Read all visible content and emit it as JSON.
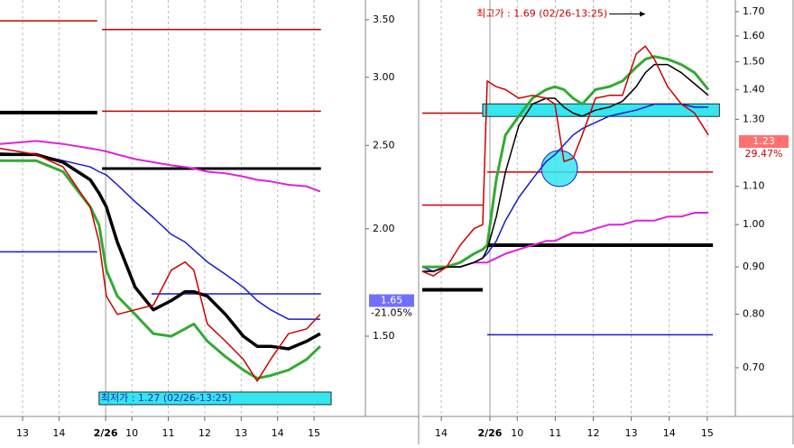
{
  "chart_data": [
    {
      "type": "line",
      "log_y": true,
      "xlim": [
        -0.62,
        9.41
      ],
      "ylim": [
        1.21,
        3.69
      ],
      "xticks": [
        {
          "value": 0,
          "label": "13"
        },
        {
          "value": 1,
          "label": "14"
        },
        {
          "value": 2.28,
          "label": "2/26"
        },
        {
          "value": 3,
          "label": "10"
        },
        {
          "value": 4,
          "label": "11"
        },
        {
          "value": 5,
          "label": "12"
        },
        {
          "value": 6,
          "label": "13"
        },
        {
          "value": 7,
          "label": "14"
        },
        {
          "value": 8,
          "label": "15"
        }
      ],
      "yticks": [
        {
          "value": 3.5,
          "label": "3.50"
        },
        {
          "value": 3,
          "label": "3.00"
        },
        {
          "value": 2.5,
          "label": "2.50"
        },
        {
          "value": 2,
          "label": "2.00"
        },
        {
          "value": 1.5,
          "label": "1.50"
        }
      ],
      "x": [
        -0.62,
        0.37,
        1.11,
        1.86,
        2.1,
        2.3,
        2.6,
        3.09,
        3.59,
        4.08,
        4.46,
        4.7,
        5.07,
        5.57,
        6.06,
        6.44,
        6.81,
        7.3,
        7.8,
        8.17
      ],
      "series": [
        {
          "color": "#dd22dd",
          "width": 2,
          "values": [
            2.51,
            2.53,
            2.51,
            2.48,
            2.47,
            2.46,
            2.44,
            2.41,
            2.39,
            2.37,
            2.36,
            2.35,
            2.33,
            2.32,
            2.3,
            2.28,
            2.27,
            2.25,
            2.24,
            2.21
          ]
        },
        {
          "color": "#1a1acc",
          "width": 1.5,
          "values": [
            2.45,
            2.44,
            2.4,
            2.36,
            2.33,
            2.31,
            2.25,
            2.15,
            2.06,
            1.97,
            1.93,
            1.89,
            1.83,
            1.77,
            1.71,
            1.65,
            1.61,
            1.57,
            1.57,
            1.57
          ]
        },
        {
          "color": "#33aa33",
          "width": 3,
          "values": [
            2.4,
            2.4,
            2.33,
            2.12,
            2.02,
            1.79,
            1.67,
            1.59,
            1.51,
            1.5,
            1.53,
            1.55,
            1.48,
            1.42,
            1.37,
            1.34,
            1.35,
            1.37,
            1.41,
            1.46
          ]
        },
        {
          "color": "#000000",
          "width": 3.5,
          "values": [
            2.44,
            2.44,
            2.39,
            2.28,
            2.2,
            2.12,
            1.93,
            1.71,
            1.61,
            1.65,
            1.69,
            1.69,
            1.67,
            1.59,
            1.5,
            1.46,
            1.46,
            1.45,
            1.48,
            1.51
          ]
        },
        {
          "color": "#cc0000",
          "width": 1.5,
          "values": [
            2.48,
            2.44,
            2.36,
            2.12,
            1.93,
            1.67,
            1.59,
            1.61,
            1.63,
            1.79,
            1.83,
            1.79,
            1.55,
            1.48,
            1.41,
            1.33,
            1.41,
            1.51,
            1.53,
            1.59
          ]
        }
      ],
      "hlines": [
        {
          "value": 3.49,
          "x": [
            -0.62,
            2.05
          ],
          "color": "#cc0000",
          "width": 1.5
        },
        {
          "value": 3.41,
          "x": [
            2.18,
            8.19
          ],
          "color": "#cc0000",
          "width": 1.5
        },
        {
          "value": 2.73,
          "x": [
            -0.62,
            2.05
          ],
          "color": "#000000",
          "width": 4
        },
        {
          "value": 2.74,
          "x": [
            2.18,
            8.19
          ],
          "color": "#cc0000",
          "width": 1.5
        },
        {
          "value": 2.35,
          "x": [
            2.18,
            8.19
          ],
          "color": "#000000",
          "width": 3
        },
        {
          "value": 1.88,
          "x": [
            -0.62,
            2.05
          ],
          "color": "#1a1acc",
          "width": 1.5
        },
        {
          "value": 1.68,
          "x": [
            3.54,
            8.19
          ],
          "color": "#1a1acc",
          "width": 1.5
        }
      ],
      "band": {
        "value": 1.27,
        "x": [
          2.1,
          8.47
        ],
        "label": "최저가 : 1.27 (02/26-13:25)"
      },
      "last": {
        "value": 1.65,
        "change": "-21.05%",
        "color": "#7070ff",
        "change_color": "#000000"
      }
    },
    {
      "type": "line",
      "log_y": true,
      "xlim": [
        0.5,
        8.74
      ],
      "ylim": [
        0.62,
        1.75
      ],
      "xticks": [
        {
          "value": 1,
          "label": "14"
        },
        {
          "value": 2.28,
          "label": "2/26"
        },
        {
          "value": 3,
          "label": "10"
        },
        {
          "value": 4,
          "label": "11"
        },
        {
          "value": 5,
          "label": "12"
        },
        {
          "value": 6,
          "label": "13"
        },
        {
          "value": 7,
          "label": "14"
        },
        {
          "value": 8,
          "label": "15"
        }
      ],
      "yticks": [
        {
          "value": 1.7,
          "label": "1.70"
        },
        {
          "value": 1.6,
          "label": "1.60"
        },
        {
          "value": 1.5,
          "label": "1.50"
        },
        {
          "value": 1.4,
          "label": "1.40"
        },
        {
          "value": 1.3,
          "label": "1.30"
        },
        {
          "value": 1.1,
          "label": "1.10"
        },
        {
          "value": 1,
          "label": "1.00"
        },
        {
          "value": 0.9,
          "label": "0.90"
        },
        {
          "value": 0.8,
          "label": "0.80"
        },
        {
          "value": 0.7,
          "label": "0.70"
        }
      ],
      "x": [
        0.5,
        0.79,
        1.14,
        1.5,
        1.86,
        2.09,
        2.21,
        2.45,
        2.69,
        3.04,
        3.4,
        3.76,
        3.99,
        4.23,
        4.47,
        4.71,
        5.06,
        5.42,
        5.77,
        6.13,
        6.37,
        6.61,
        6.96,
        7.32,
        7.67,
        8.03
      ],
      "series": [
        {
          "color": "#dd22dd",
          "width": 2,
          "values": [
            0.89,
            0.89,
            0.9,
            0.9,
            0.91,
            0.91,
            0.91,
            0.92,
            0.93,
            0.94,
            0.95,
            0.96,
            0.96,
            0.97,
            0.98,
            0.98,
            0.99,
            1,
            1,
            1.01,
            1.01,
            1.01,
            1.02,
            1.02,
            1.03,
            1.03
          ]
        },
        {
          "color": "#1a1acc",
          "width": 1.5,
          "values": [
            0.9,
            0.89,
            0.9,
            0.9,
            0.91,
            0.92,
            0.93,
            0.96,
            1.01,
            1.07,
            1.12,
            1.17,
            1.19,
            1.22,
            1.25,
            1.27,
            1.29,
            1.31,
            1.32,
            1.33,
            1.34,
            1.35,
            1.35,
            1.35,
            1.34,
            1.34
          ]
        },
        {
          "color": "#33aa33",
          "width": 3,
          "values": [
            0.9,
            0.9,
            0.9,
            0.91,
            0.93,
            0.94,
            0.95,
            1.12,
            1.25,
            1.31,
            1.37,
            1.4,
            1.41,
            1.4,
            1.37,
            1.35,
            1.4,
            1.41,
            1.43,
            1.48,
            1.51,
            1.52,
            1.51,
            1.49,
            1.46,
            1.4
          ]
        },
        {
          "color": "#000000",
          "width": 1.5,
          "values": [
            0.89,
            0.89,
            0.9,
            0.9,
            0.91,
            0.92,
            0.94,
            1.02,
            1.14,
            1.28,
            1.35,
            1.37,
            1.37,
            1.34,
            1.32,
            1.31,
            1.33,
            1.34,
            1.36,
            1.41,
            1.46,
            1.49,
            1.49,
            1.46,
            1.42,
            1.38
          ]
        },
        {
          "color": "#cc0000",
          "width": 1.5,
          "values": [
            0.89,
            0.88,
            0.9,
            0.95,
            0.99,
            1,
            1.43,
            1.41,
            1.4,
            1.37,
            1.38,
            1.37,
            1.35,
            1.17,
            1.18,
            1.25,
            1.37,
            1.38,
            1.38,
            1.53,
            1.56,
            1.51,
            1.41,
            1.35,
            1.32,
            1.25
          ]
        }
      ],
      "hlines": [
        {
          "value": 1.32,
          "x": [
            0.5,
            2.09
          ],
          "color": "#cc0000",
          "width": 1.5
        },
        {
          "value": 1.14,
          "x": [
            2.21,
            8.15
          ],
          "color": "#cc0000",
          "width": 1.5
        },
        {
          "value": 1.05,
          "x": [
            0.5,
            2.09
          ],
          "color": "#cc0000",
          "width": 1.5
        },
        {
          "value": 0.95,
          "x": [
            2.21,
            8.15
          ],
          "color": "#000000",
          "width": 4
        },
        {
          "value": 0.85,
          "x": [
            0.5,
            2.09
          ],
          "color": "#000000",
          "width": 4
        },
        {
          "value": 0.76,
          "x": [
            2.21,
            8.15
          ],
          "color": "#1a1acc",
          "width": 1.5
        }
      ],
      "band": {
        "value": 1.33,
        "x": [
          2.09,
          8.32
        ]
      },
      "circle": {
        "x": 4.11,
        "value": 1.15
      },
      "peak": {
        "x": 6.37,
        "value": 1.69,
        "label": "최고가 : 1.69 (02/26-13:25)"
      },
      "last": {
        "value": 1.23,
        "change": "29.47%",
        "color": "#ff7070",
        "change_color": "#cc0000"
      }
    }
  ]
}
